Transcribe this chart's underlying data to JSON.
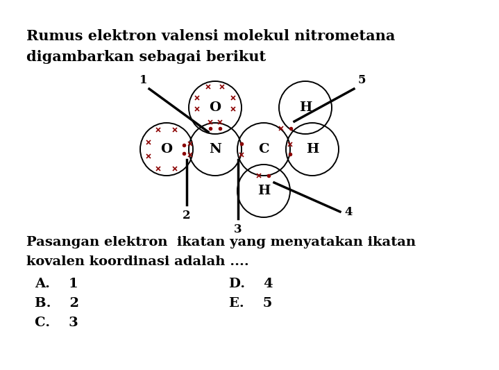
{
  "title_line1": "Rumus elektron valensi molekul nitrometana",
  "title_line2": "digambarkan sebagai berikut",
  "question_line1": "Pasangan elektron  ikatan yang menyatakan ikatan",
  "question_line2": "kovalen koordinasi adalah ....",
  "opt_A": "A.    1",
  "opt_B": "B.    2",
  "opt_C": "C.    3",
  "opt_D": "D.    4",
  "opt_E": "E.    5",
  "bg_color": "#ffffff",
  "text_color": "#000000",
  "dot_color": "#8b0000",
  "font_size_title": 15,
  "font_size_atom": 14,
  "font_size_label": 12,
  "font_size_option": 14,
  "circle_lw": 1.4,
  "arrow_lw": 2.5
}
